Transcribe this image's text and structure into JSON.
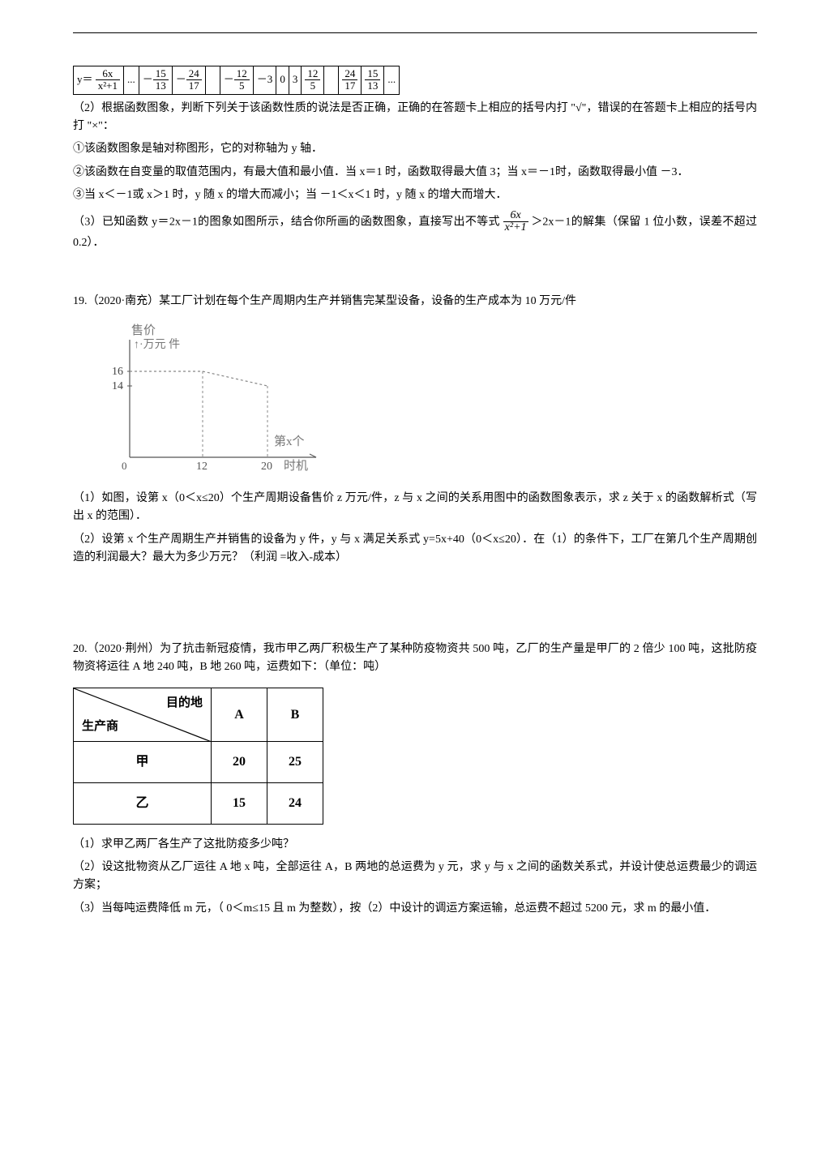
{
  "function_row": {
    "label_prefix": "y＝",
    "formula_top": "6x",
    "formula_bot": "x²+1",
    "cells": [
      "...",
      {
        "num": "15",
        "den": "13",
        "neg": true
      },
      {
        "num": "24",
        "den": "17",
        "neg": true
      },
      "",
      {
        "num": "12",
        "den": "5",
        "neg": true
      },
      "－3",
      "0",
      "3",
      {
        "num": "12",
        "den": "5"
      },
      "",
      {
        "num": "24",
        "den": "17"
      },
      {
        "num": "15",
        "den": "13"
      },
      "..."
    ]
  },
  "section2_intro": "（2）根据函数图象，判断下列关于该函数性质的说法是否正确，正确的在答题卡上相应的括号内打 \"√\"，错误的在答题卡上相应的括号内打 \"×\"：",
  "stmt1": "①该函数图象是轴对称图形，它的对称轴为 y 轴．",
  "stmt2": "②该函数在自变量的取值范围内，有最大值和最小值．当 x＝1 时，函数取得最大值 3；当 x＝－1时，函数取得最小值 －3．",
  "stmt3": "③当 x＜－1或 x＞1 时，y 随 x 的增大而减小；当 －1＜x＜1 时，y 随 x 的增大而增大．",
  "section3_a": "（3）已知函数 y＝2x－1的图象如图所示，结合你所画的函数图象，直接写出不等式 ",
  "section3_frac_top": "6x",
  "section3_frac_bot": "x²+1",
  "section3_b": "＞2x－1的解集（保留 1 位小数，误差不超过 0.2）．",
  "q19_header": "19.（2020·南充）某工厂计划在每个生产周期内生产并销售完某型设备，设备的生产成本为 10 万元/件",
  "q19_chart": {
    "ylabel_top": "售价",
    "ylabel_sub": "↑·万元 件",
    "yticks": [
      "16",
      "14"
    ],
    "xticks": [
      "0",
      "12",
      "20"
    ],
    "xlabel": "第x个",
    "xunit": "时机",
    "axis_color": "#555555",
    "series_color": "#888888"
  },
  "q19_p1": "（1）如图，设第 x（0＜x≤20）个生产周期设备售价 z 万元/件，z 与 x 之间的关系用图中的函数图象表示，求 z 关于 x 的函数解析式（写出 x 的范围）．",
  "q19_p2": "（2）设第 x 个生产周期生产并销售的设备为 y 件，y 与 x 满足关系式 y=5x+40（0＜x≤20）．在（1）的条件下，工厂在第几个生产周期创造的利润最大？最大为多少万元？（利润 =收入-成本）",
  "q20_header": "20.（2020·荆州）为了抗击新冠疫情，我市甲乙两厂积极生产了某种防疫物资共 500 吨，乙厂的生产量是甲厂的 2 倍少 100 吨，这批防疫物资将运往 A 地 240 吨，B 地 260 吨，运费如下：（单位：吨）",
  "cost_table": {
    "header_top": "目的地",
    "header_left": "生产商",
    "cols": [
      "A",
      "B"
    ],
    "rows": [
      {
        "label": "甲",
        "values": [
          "20",
          "25"
        ]
      },
      {
        "label": "乙",
        "values": [
          "15",
          "24"
        ]
      }
    ]
  },
  "q20_p1": "（1）求甲乙两厂各生产了这批防疫多少吨？",
  "q20_p2": "（2）设这批物资从乙厂运往 A 地 x 吨，全部运往 A，B 两地的总运费为 y 元，求 y 与 x 之间的函数关系式，并设计使总运费最少的调运方案；",
  "q20_p3a": "（3）当每吨运费降低 m 元，（ ",
  "q20_p3_ineq": "0＜m≤15",
  "q20_p3b": "且 m 为整数），按（2）中设计的调运方案运输，总运费不超过 5200 元，求 m 的最小值．"
}
